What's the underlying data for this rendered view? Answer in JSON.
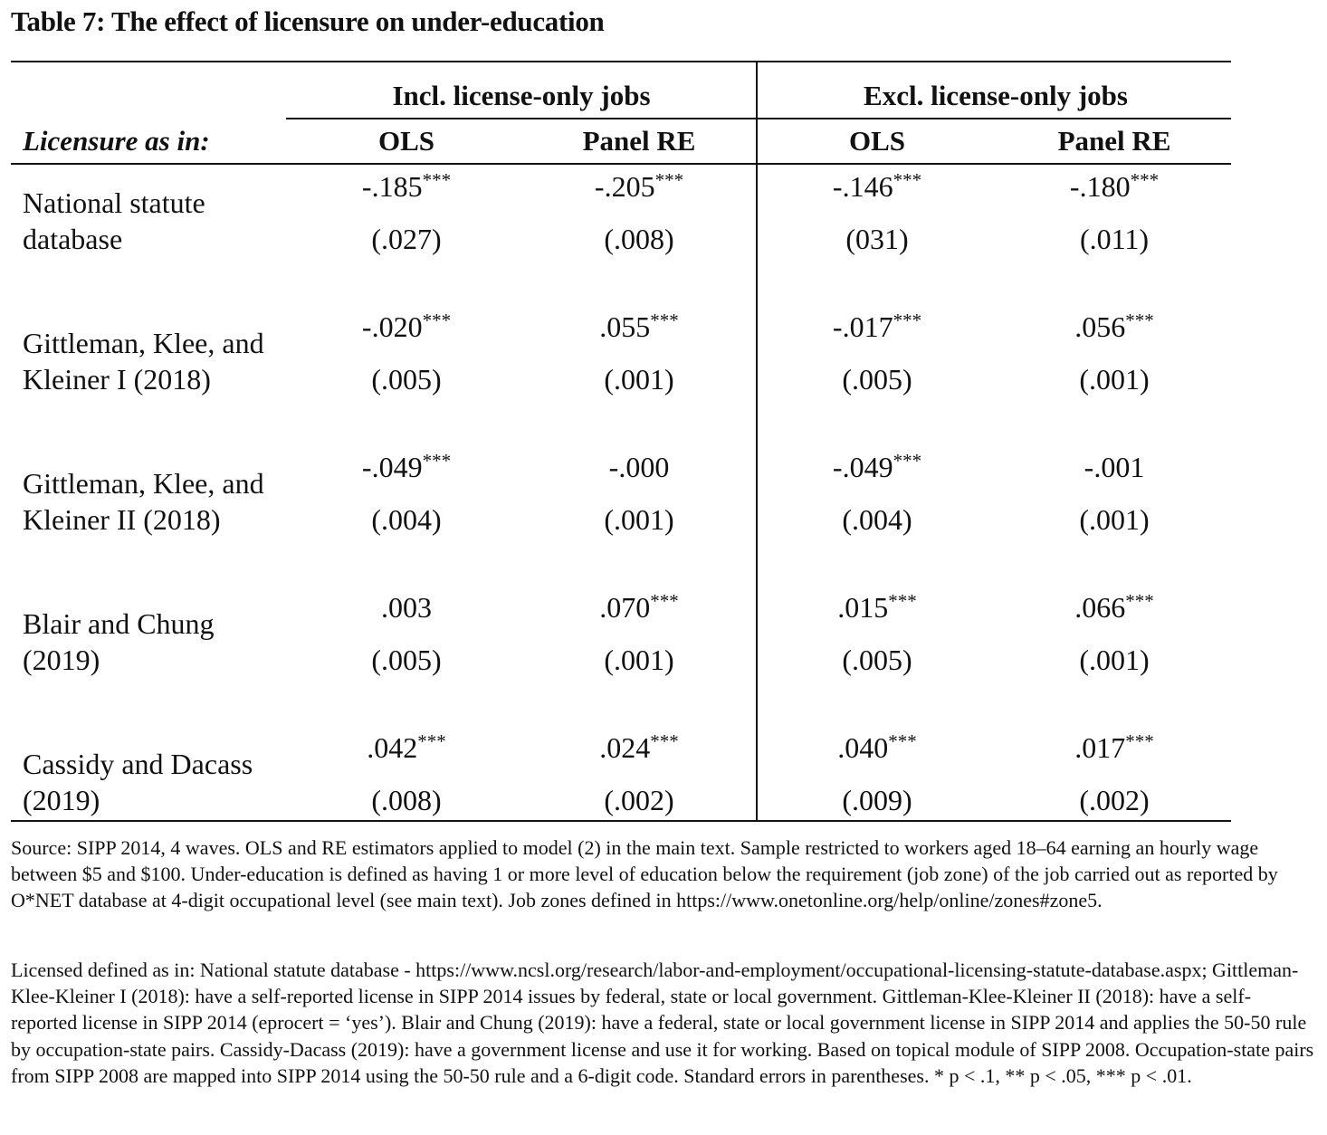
{
  "title": "Table 7: The effect of licensure on under-education",
  "stub_header": "Licensure as in:",
  "column_groups": [
    {
      "label": "Incl. license-only jobs",
      "columns": [
        "OLS",
        "Panel RE"
      ]
    },
    {
      "label": "Excl. license-only jobs",
      "columns": [
        "OLS",
        "Panel RE"
      ]
    }
  ],
  "rows": [
    {
      "label_lines": [
        "National statute",
        "database"
      ],
      "cells": [
        {
          "coef": "-.185",
          "stars": "***",
          "se": "(.027)"
        },
        {
          "coef": "-.205",
          "stars": "***",
          "se": "(.008)"
        },
        {
          "coef": "-.146",
          "stars": "***",
          "se": "(031)"
        },
        {
          "coef": "-.180",
          "stars": "***",
          "se": "(.011)"
        }
      ]
    },
    {
      "label_lines": [
        "Gittleman, Klee, and",
        "Kleiner I (2018)"
      ],
      "cells": [
        {
          "coef": "-.020",
          "stars": "***",
          "se": "(.005)"
        },
        {
          "coef": ".055",
          "stars": "***",
          "se": "(.001)"
        },
        {
          "coef": "-.017",
          "stars": "***",
          "se": "(.005)"
        },
        {
          "coef": ".056",
          "stars": "***",
          "se": "(.001)"
        }
      ]
    },
    {
      "label_lines": [
        "Gittleman, Klee, and",
        "Kleiner II (2018)"
      ],
      "cells": [
        {
          "coef": "-.049",
          "stars": "***",
          "se": "(.004)"
        },
        {
          "coef": "-.000",
          "stars": "",
          "se": "(.001)"
        },
        {
          "coef": "-.049",
          "stars": "***",
          "se": "(.004)"
        },
        {
          "coef": "-.001",
          "stars": "",
          "se": "(.001)"
        }
      ]
    },
    {
      "label_lines": [
        "Blair and Chung",
        "(2019)"
      ],
      "cells": [
        {
          "coef": ".003",
          "stars": "",
          "se": "(.005)"
        },
        {
          "coef": ".070",
          "stars": "***",
          "se": "(.001)"
        },
        {
          "coef": ".015",
          "stars": "***",
          "se": "(.005)"
        },
        {
          "coef": ".066",
          "stars": "***",
          "se": "(.001)"
        }
      ]
    },
    {
      "label_lines": [
        "Cassidy and Dacass",
        "(2019)"
      ],
      "cells": [
        {
          "coef": ".042",
          "stars": "***",
          "se": "(.008)"
        },
        {
          "coef": ".024",
          "stars": "***",
          "se": "(.002)"
        },
        {
          "coef": ".040",
          "stars": "***",
          "se": "(.009)"
        },
        {
          "coef": ".017",
          "stars": "***",
          "se": "(.002)"
        }
      ]
    }
  ],
  "notes": {
    "source": "Source: SIPP 2014, 4 waves. OLS and RE estimators applied to model (2) in the main text. Sample restricted to workers aged 18–64 earning an hourly wage between $5 and $100. Under-education is defined as having 1 or more level of education below the requirement (job zone) of the job carried out as reported by O*NET database at 4-digit occupational level (see main text). Job zones defined in https://www.onetonline.org/help/online/zones#zone5.",
    "licensed_def": "Licensed defined as in: National statute database - https://www.ncsl.org/research/labor-and-employment/occupational-licensing-statute-database.aspx; Gittleman-Klee-Kleiner I (2018): have a self-reported license in SIPP 2014 issues by federal, state or local government. Gittleman-Klee-Kleiner II (2018): have a self-reported license in SIPP 2014 (eprocert = ‘yes’). Blair and Chung (2019): have a federal, state or local government license in SIPP 2014 and applies the 50-50 rule by occupation-state pairs. Cassidy-Dacass (2019): have a government license and use it for working. Based on topical module of SIPP 2008. Occupation-state pairs from SIPP 2008 are mapped into SIPP 2014 using the 50-50 rule and a 6-digit code. Standard errors in parentheses.",
    "significance": "* p < .1, ** p < .05, *** p < .01."
  }
}
